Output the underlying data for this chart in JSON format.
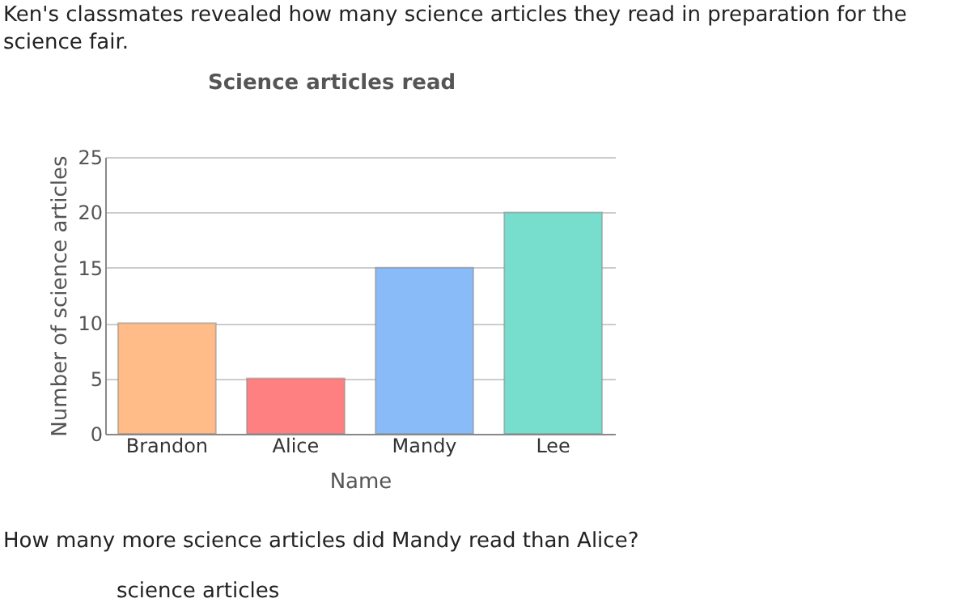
{
  "chart_data": {
    "type": "bar",
    "title": "Science articles read",
    "xlabel": "Name",
    "ylabel": "Number of science articles",
    "categories": [
      "Brandon",
      "Alice",
      "Mandy",
      "Lee"
    ],
    "values": [
      10,
      5,
      15,
      20
    ],
    "colors": [
      "#ffbb88",
      "#ff8080",
      "#88bbf8",
      "#77ddcc"
    ],
    "ylim": [
      0,
      25
    ],
    "yticks": [
      0,
      5,
      10,
      15,
      20,
      25
    ],
    "grid": "y",
    "legend": false,
    "annotations": [
      "Ken's classmates revealed how many science articles they read in preparation for the science fair.",
      "How many more science articles did Mandy read than Alice?",
      "science articles"
    ]
  }
}
